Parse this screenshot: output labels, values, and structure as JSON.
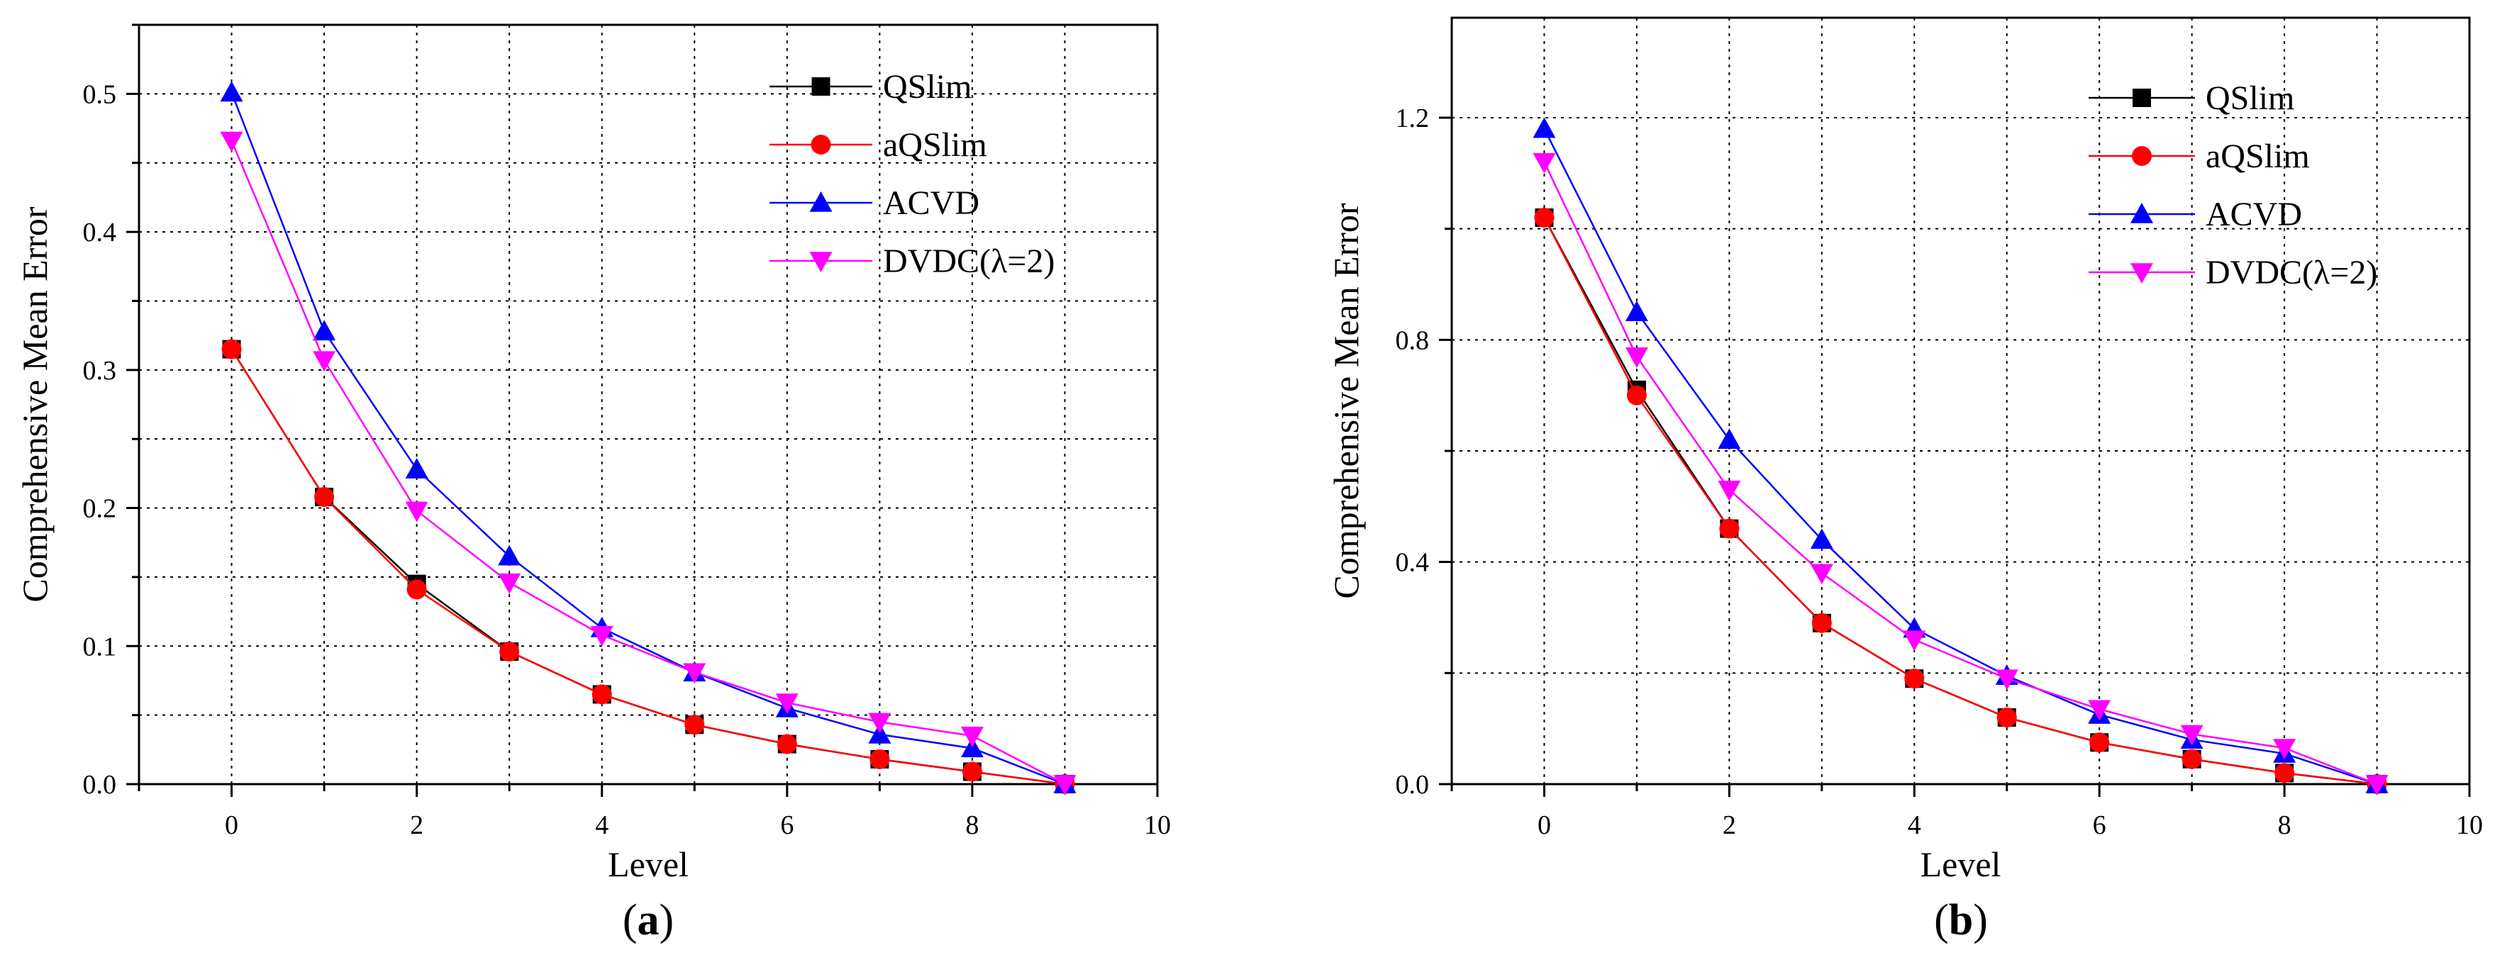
{
  "chart_data": [
    {
      "type": "line",
      "caption": "a",
      "xlabel": "Level",
      "ylabel": "Comprehensive Mean Error",
      "xlim": [
        -1,
        10
      ],
      "ylim": [
        0,
        0.55
      ],
      "xticks": [
        0,
        2,
        4,
        6,
        8,
        10
      ],
      "yticks": [
        0.0,
        0.1,
        0.2,
        0.3,
        0.4,
        0.5
      ],
      "ytick_labels": [
        "0.0",
        "0.1",
        "0.2",
        "0.3",
        "0.4",
        "0.5"
      ],
      "grid": true,
      "legend_position": "top-right",
      "x": [
        0,
        1,
        2,
        3,
        4,
        5,
        6,
        7,
        8,
        9
      ],
      "series": [
        {
          "name": "QSlim",
          "color": "#000000",
          "marker": "square",
          "values": [
            0.315,
            0.208,
            0.145,
            0.096,
            0.065,
            0.043,
            0.029,
            0.018,
            0.009,
            0.0
          ]
        },
        {
          "name": "aQSlim",
          "color": "#ff0000",
          "marker": "circle",
          "values": [
            0.315,
            0.208,
            0.141,
            0.096,
            0.065,
            0.043,
            0.029,
            0.018,
            0.009,
            0.0
          ]
        },
        {
          "name": "ACVD",
          "color": "#0000ff",
          "marker": "triangle-up",
          "values": [
            0.501,
            0.328,
            0.228,
            0.165,
            0.113,
            0.081,
            0.055,
            0.036,
            0.026,
            0.0
          ]
        },
        {
          "name": "DVDC(λ=2)",
          "color": "#ff00ff",
          "marker": "triangle-down",
          "values": [
            0.466,
            0.307,
            0.198,
            0.146,
            0.108,
            0.081,
            0.059,
            0.045,
            0.035,
            0.0
          ]
        }
      ]
    },
    {
      "type": "line",
      "caption": "b",
      "xlabel": "Level",
      "ylabel": "Comprehensive Mean Error",
      "xlim": [
        -1,
        10
      ],
      "ylim": [
        0,
        1.38
      ],
      "xticks": [
        0,
        2,
        4,
        6,
        8,
        10
      ],
      "yticks": [
        0.0,
        0.4,
        0.8,
        1.2
      ],
      "ytick_labels": [
        "0.0",
        "0.4",
        "0.8",
        "1.2"
      ],
      "grid": true,
      "legend_position": "top-right",
      "x": [
        0,
        1,
        2,
        3,
        4,
        5,
        6,
        7,
        8,
        9
      ],
      "series": [
        {
          "name": "QSlim",
          "color": "#000000",
          "marker": "square",
          "values": [
            1.02,
            0.71,
            0.46,
            0.29,
            0.19,
            0.12,
            0.075,
            0.045,
            0.02,
            0.0
          ]
        },
        {
          "name": "aQSlim",
          "color": "#ff0000",
          "marker": "circle",
          "values": [
            1.02,
            0.7,
            0.46,
            0.29,
            0.19,
            0.12,
            0.075,
            0.045,
            0.02,
            0.0
          ]
        },
        {
          "name": "ACVD",
          "color": "#0000ff",
          "marker": "triangle-up",
          "values": [
            1.18,
            0.85,
            0.62,
            0.44,
            0.28,
            0.195,
            0.125,
            0.08,
            0.055,
            0.0
          ]
        },
        {
          "name": "DVDC(λ=2)",
          "color": "#ff00ff",
          "marker": "triangle-down",
          "values": [
            1.12,
            0.77,
            0.53,
            0.38,
            0.26,
            0.19,
            0.135,
            0.09,
            0.065,
            0.0
          ]
        }
      ]
    }
  ]
}
